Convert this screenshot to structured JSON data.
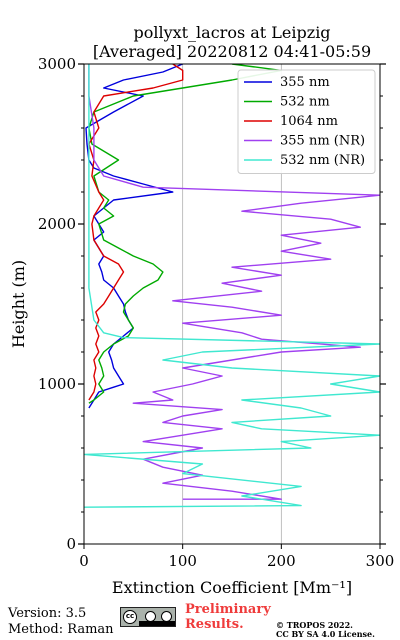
{
  "chart_data": {
    "type": "line",
    "title_line1": "pollyxt_lacros at Leipzig",
    "title_line2": "[Averaged] 20220812 04:41-05:59",
    "xlabel": "Extinction Coefficient [Mm⁻¹]",
    "ylabel": "Height (m)",
    "xlim": [
      0,
      300
    ],
    "ylim": [
      0,
      3000
    ],
    "xticks": [
      0,
      100,
      200,
      300
    ],
    "yticks": [
      0,
      1000,
      2000,
      3000
    ],
    "grid": "vertical",
    "legend_position": "top-right",
    "series": [
      {
        "name": "355 nm",
        "color": "#0000dd",
        "points": [
          [
            5,
            850
          ],
          [
            10,
            900
          ],
          [
            15,
            950
          ],
          [
            30,
            980
          ],
          [
            40,
            1000
          ],
          [
            35,
            1050
          ],
          [
            30,
            1100
          ],
          [
            28,
            1150
          ],
          [
            25,
            1200
          ],
          [
            30,
            1250
          ],
          [
            40,
            1300
          ],
          [
            50,
            1350
          ],
          [
            45,
            1400
          ],
          [
            42,
            1450
          ],
          [
            40,
            1500
          ],
          [
            35,
            1550
          ],
          [
            30,
            1600
          ],
          [
            20,
            1650
          ],
          [
            18,
            1700
          ],
          [
            15,
            1750
          ],
          [
            20,
            1800
          ],
          [
            15,
            1850
          ],
          [
            10,
            1900
          ],
          [
            20,
            1950
          ],
          [
            15,
            2000
          ],
          [
            10,
            2050
          ],
          [
            20,
            2100
          ],
          [
            30,
            2150
          ],
          [
            90,
            2200
          ],
          [
            60,
            2250
          ],
          [
            30,
            2300
          ],
          [
            10,
            2350
          ],
          [
            5,
            2400
          ],
          [
            3,
            2500
          ],
          [
            2,
            2600
          ],
          [
            30,
            2700
          ],
          [
            60,
            2800
          ],
          [
            20,
            2850
          ],
          [
            40,
            2900
          ],
          [
            80,
            2950
          ],
          [
            100,
            3000
          ]
        ]
      },
      {
        "name": "532 nm",
        "color": "#00aa00",
        "points": [
          [
            5,
            880
          ],
          [
            10,
            900
          ],
          [
            20,
            950
          ],
          [
            15,
            1000
          ],
          [
            20,
            1050
          ],
          [
            18,
            1100
          ],
          [
            15,
            1150
          ],
          [
            20,
            1200
          ],
          [
            30,
            1250
          ],
          [
            45,
            1300
          ],
          [
            50,
            1350
          ],
          [
            45,
            1400
          ],
          [
            40,
            1450
          ],
          [
            42,
            1500
          ],
          [
            50,
            1550
          ],
          [
            60,
            1600
          ],
          [
            75,
            1650
          ],
          [
            80,
            1700
          ],
          [
            70,
            1750
          ],
          [
            50,
            1800
          ],
          [
            35,
            1850
          ],
          [
            20,
            1900
          ],
          [
            15,
            2000
          ],
          [
            30,
            2050
          ],
          [
            20,
            2100
          ],
          [
            25,
            2150
          ],
          [
            15,
            2200
          ],
          [
            10,
            2300
          ],
          [
            35,
            2400
          ],
          [
            8,
            2500
          ],
          [
            5,
            2600
          ],
          [
            10,
            2700
          ],
          [
            50,
            2800
          ],
          [
            150,
            2900
          ],
          [
            200,
            2960
          ],
          [
            150,
            3000
          ]
        ]
      },
      {
        "name": "1064 nm",
        "color": "#dd0000",
        "points": [
          [
            5,
            900
          ],
          [
            10,
            950
          ],
          [
            12,
            1000
          ],
          [
            10,
            1050
          ],
          [
            12,
            1100
          ],
          [
            10,
            1150
          ],
          [
            15,
            1200
          ],
          [
            12,
            1250
          ],
          [
            15,
            1300
          ],
          [
            12,
            1350
          ],
          [
            15,
            1400
          ],
          [
            12,
            1450
          ],
          [
            20,
            1500
          ],
          [
            25,
            1550
          ],
          [
            30,
            1600
          ],
          [
            35,
            1650
          ],
          [
            40,
            1700
          ],
          [
            35,
            1750
          ],
          [
            20,
            1800
          ],
          [
            15,
            1850
          ],
          [
            10,
            1900
          ],
          [
            8,
            2000
          ],
          [
            10,
            2050
          ],
          [
            15,
            2100
          ],
          [
            20,
            2150
          ],
          [
            15,
            2200
          ],
          [
            8,
            2300
          ],
          [
            10,
            2400
          ],
          [
            5,
            2500
          ],
          [
            15,
            2600
          ],
          [
            10,
            2700
          ],
          [
            20,
            2800
          ],
          [
            70,
            2850
          ],
          [
            100,
            2900
          ],
          [
            100,
            2960
          ],
          [
            90,
            3000
          ]
        ]
      },
      {
        "name": "355 nm (NR)",
        "color": "#a040f0",
        "points": [
          [
            100,
            280
          ],
          [
            200,
            280
          ],
          [
            150,
            330
          ],
          [
            80,
            380
          ],
          [
            120,
            430
          ],
          [
            80,
            480
          ],
          [
            60,
            530
          ],
          [
            120,
            600
          ],
          [
            60,
            640
          ],
          [
            100,
            680
          ],
          [
            140,
            720
          ],
          [
            80,
            760
          ],
          [
            100,
            800
          ],
          [
            140,
            840
          ],
          [
            50,
            880
          ],
          [
            90,
            900
          ],
          [
            70,
            950
          ],
          [
            110,
            1000
          ],
          [
            140,
            1050
          ],
          [
            100,
            1100
          ],
          [
            150,
            1150
          ],
          [
            200,
            1200
          ],
          [
            280,
            1230
          ],
          [
            180,
            1280
          ],
          [
            160,
            1320
          ],
          [
            100,
            1380
          ],
          [
            200,
            1430
          ],
          [
            150,
            1480
          ],
          [
            90,
            1520
          ],
          [
            180,
            1580
          ],
          [
            140,
            1630
          ],
          [
            200,
            1680
          ],
          [
            150,
            1730
          ],
          [
            250,
            1780
          ],
          [
            200,
            1830
          ],
          [
            240,
            1880
          ],
          [
            200,
            1930
          ],
          [
            280,
            1980
          ],
          [
            250,
            2030
          ],
          [
            160,
            2080
          ],
          [
            220,
            2130
          ],
          [
            300,
            2180
          ],
          [
            60,
            2230
          ],
          [
            20,
            2300
          ],
          [
            10,
            2400
          ],
          [
            10,
            2600
          ],
          [
            5,
            2800
          ],
          [
            5,
            3000
          ]
        ]
      },
      {
        "name": "532 nm (NR)",
        "color": "#40e8d0",
        "points": [
          [
            0,
            230
          ],
          [
            220,
            240
          ],
          [
            160,
            300
          ],
          [
            220,
            360
          ],
          [
            100,
            440
          ],
          [
            120,
            500
          ],
          [
            0,
            560
          ],
          [
            230,
            600
          ],
          [
            200,
            640
          ],
          [
            300,
            680
          ],
          [
            180,
            720
          ],
          [
            150,
            760
          ],
          [
            250,
            800
          ],
          [
            220,
            850
          ],
          [
            160,
            900
          ],
          [
            300,
            950
          ],
          [
            250,
            1000
          ],
          [
            300,
            1050
          ],
          [
            150,
            1100
          ],
          [
            80,
            1150
          ],
          [
            120,
            1200
          ],
          [
            300,
            1250
          ],
          [
            40,
            1290
          ],
          [
            20,
            1320
          ],
          [
            10,
            1400
          ],
          [
            5,
            1600
          ],
          [
            5,
            2000
          ],
          [
            5,
            3000
          ]
        ]
      }
    ]
  },
  "footer": {
    "version": "Version: 3.5",
    "method": "Method: Raman",
    "prelim_line1": "Preliminary",
    "prelim_line2": "Results.",
    "copyright_line1": "© TROPOS 2022.",
    "copyright_line2": "CC BY SA 4.0 License.",
    "license_badge": "cc"
  }
}
